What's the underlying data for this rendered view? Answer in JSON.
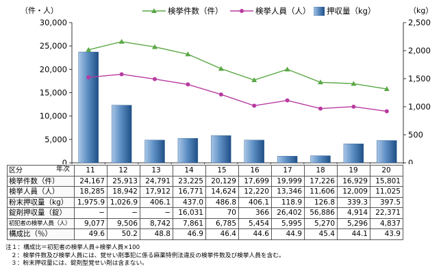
{
  "chart_data": {
    "type": "bar+line",
    "categories": [
      "11",
      "12",
      "13",
      "14",
      "15",
      "16",
      "17",
      "18",
      "19",
      "20"
    ],
    "series": [
      {
        "name": "検挙件数（件）",
        "type": "line",
        "axis": "left",
        "color": "#5aa845",
        "marker": "triangle",
        "values": [
          24167,
          25913,
          24791,
          23225,
          20129,
          17699,
          19999,
          17226,
          16929,
          15801
        ]
      },
      {
        "name": "検挙人員（人）",
        "type": "line",
        "axis": "left",
        "color": "#b83aa0",
        "marker": "circle",
        "values": [
          18285,
          18942,
          17912,
          16771,
          14624,
          12220,
          13346,
          11606,
          12009,
          11025
        ]
      },
      {
        "name": "押収量（kg）",
        "type": "bar",
        "axis": "right",
        "color": "#3c6fa6",
        "values": [
          1975.9,
          1026.9,
          406.1,
          437.0,
          486.8,
          406.1,
          118.9,
          126.8,
          339.3,
          397.5
        ]
      }
    ],
    "y_left": {
      "label": "（件・人）",
      "range": [
        0,
        30000
      ],
      "ticks": [
        "0",
        "5,000",
        "10,000",
        "15,000",
        "20,000",
        "25,000",
        "30,000"
      ]
    },
    "y_right": {
      "label": "（kg）",
      "range": [
        0,
        2500
      ],
      "ticks": [
        "0",
        "500",
        "1,000",
        "1,500",
        "2,000",
        "2,500"
      ]
    },
    "grid": false,
    "legend": "top"
  },
  "table": {
    "corner_top": "年次",
    "corner_bottom": "区分",
    "years": [
      "11",
      "12",
      "13",
      "14",
      "15",
      "16",
      "17",
      "18",
      "19",
      "20"
    ],
    "rows": [
      {
        "label": "検挙件数（件）",
        "values": [
          "24,167",
          "25,913",
          "24,791",
          "23,225",
          "20,129",
          "17,699",
          "19,999",
          "17,226",
          "16,929",
          "15,801"
        ]
      },
      {
        "label": "検挙人員（人）",
        "values": [
          "18,285",
          "18,942",
          "17,912",
          "16,771",
          "14,624",
          "12,220",
          "13,346",
          "11,606",
          "12,009",
          "11,025"
        ]
      },
      {
        "label": "粉末押収量（kg）",
        "values": [
          "1,975.9",
          "1,026.9",
          "406.1",
          "437.0",
          "486.8",
          "406.1",
          "118.9",
          "126.8",
          "339.3",
          "397.5"
        ]
      },
      {
        "label": "錠剤押収量（錠）",
        "values": [
          "−",
          "−",
          "−",
          "16,031",
          "70",
          "366",
          "26,402",
          "56,886",
          "4,914",
          "22,371"
        ]
      },
      {
        "label": "初犯者の検挙人員（人）",
        "values": [
          "9,077",
          "9,506",
          "8,742",
          "7,861",
          "6,785",
          "5,454",
          "5,995",
          "5,270",
          "5,296",
          "4,837"
        ]
      },
      {
        "label": "構成比（％）",
        "values": [
          "49.6",
          "50.2",
          "48.8",
          "46.9",
          "46.4",
          "44.6",
          "44.9",
          "45.4",
          "44.1",
          "43.9"
        ]
      }
    ]
  },
  "notes": [
    "注１：構成比＝初犯者の検挙人員÷検挙人員×100",
    "２：検挙件数及び検挙人員には、覚せい剤事犯に係る麻薬特例法違反の検挙件数及び検挙人員を含む。",
    "３：粉末押収量には、錠剤型覚せい剤は含まない。"
  ]
}
